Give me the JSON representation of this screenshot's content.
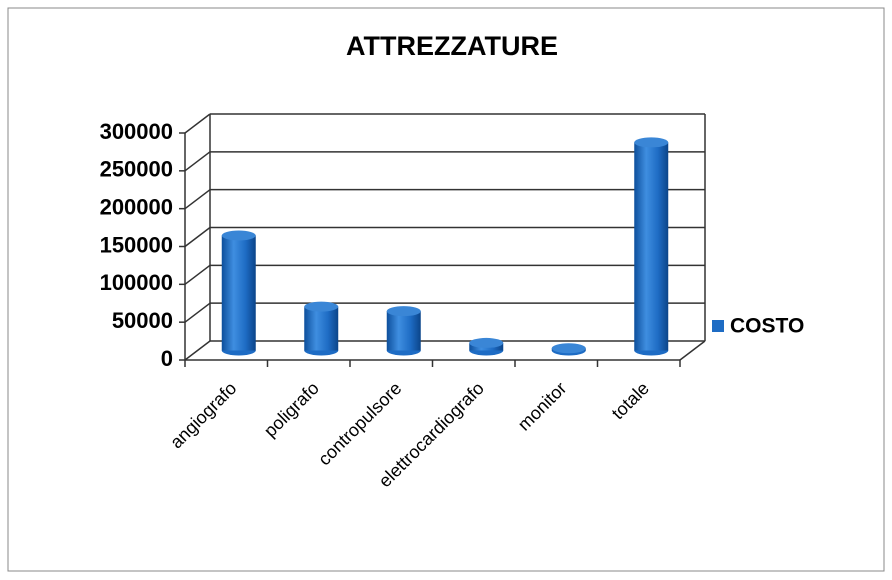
{
  "chart_data": {
    "type": "bar3d",
    "title": "ATTREZZATURE",
    "categories": [
      "angiografo",
      "poligrafo",
      "contropulsore",
      "elettrocardiografo",
      "monitor",
      "totale"
    ],
    "series": [
      {
        "name": "COSTO",
        "color": "#1e6cc4",
        "values": [
          152000,
          58000,
          52000,
          10000,
          3000,
          275000
        ]
      }
    ],
    "ylim": [
      0,
      300000
    ],
    "yticks": [
      0,
      50000,
      100000,
      150000,
      200000,
      250000,
      300000
    ],
    "grid": true,
    "legend": "right"
  }
}
